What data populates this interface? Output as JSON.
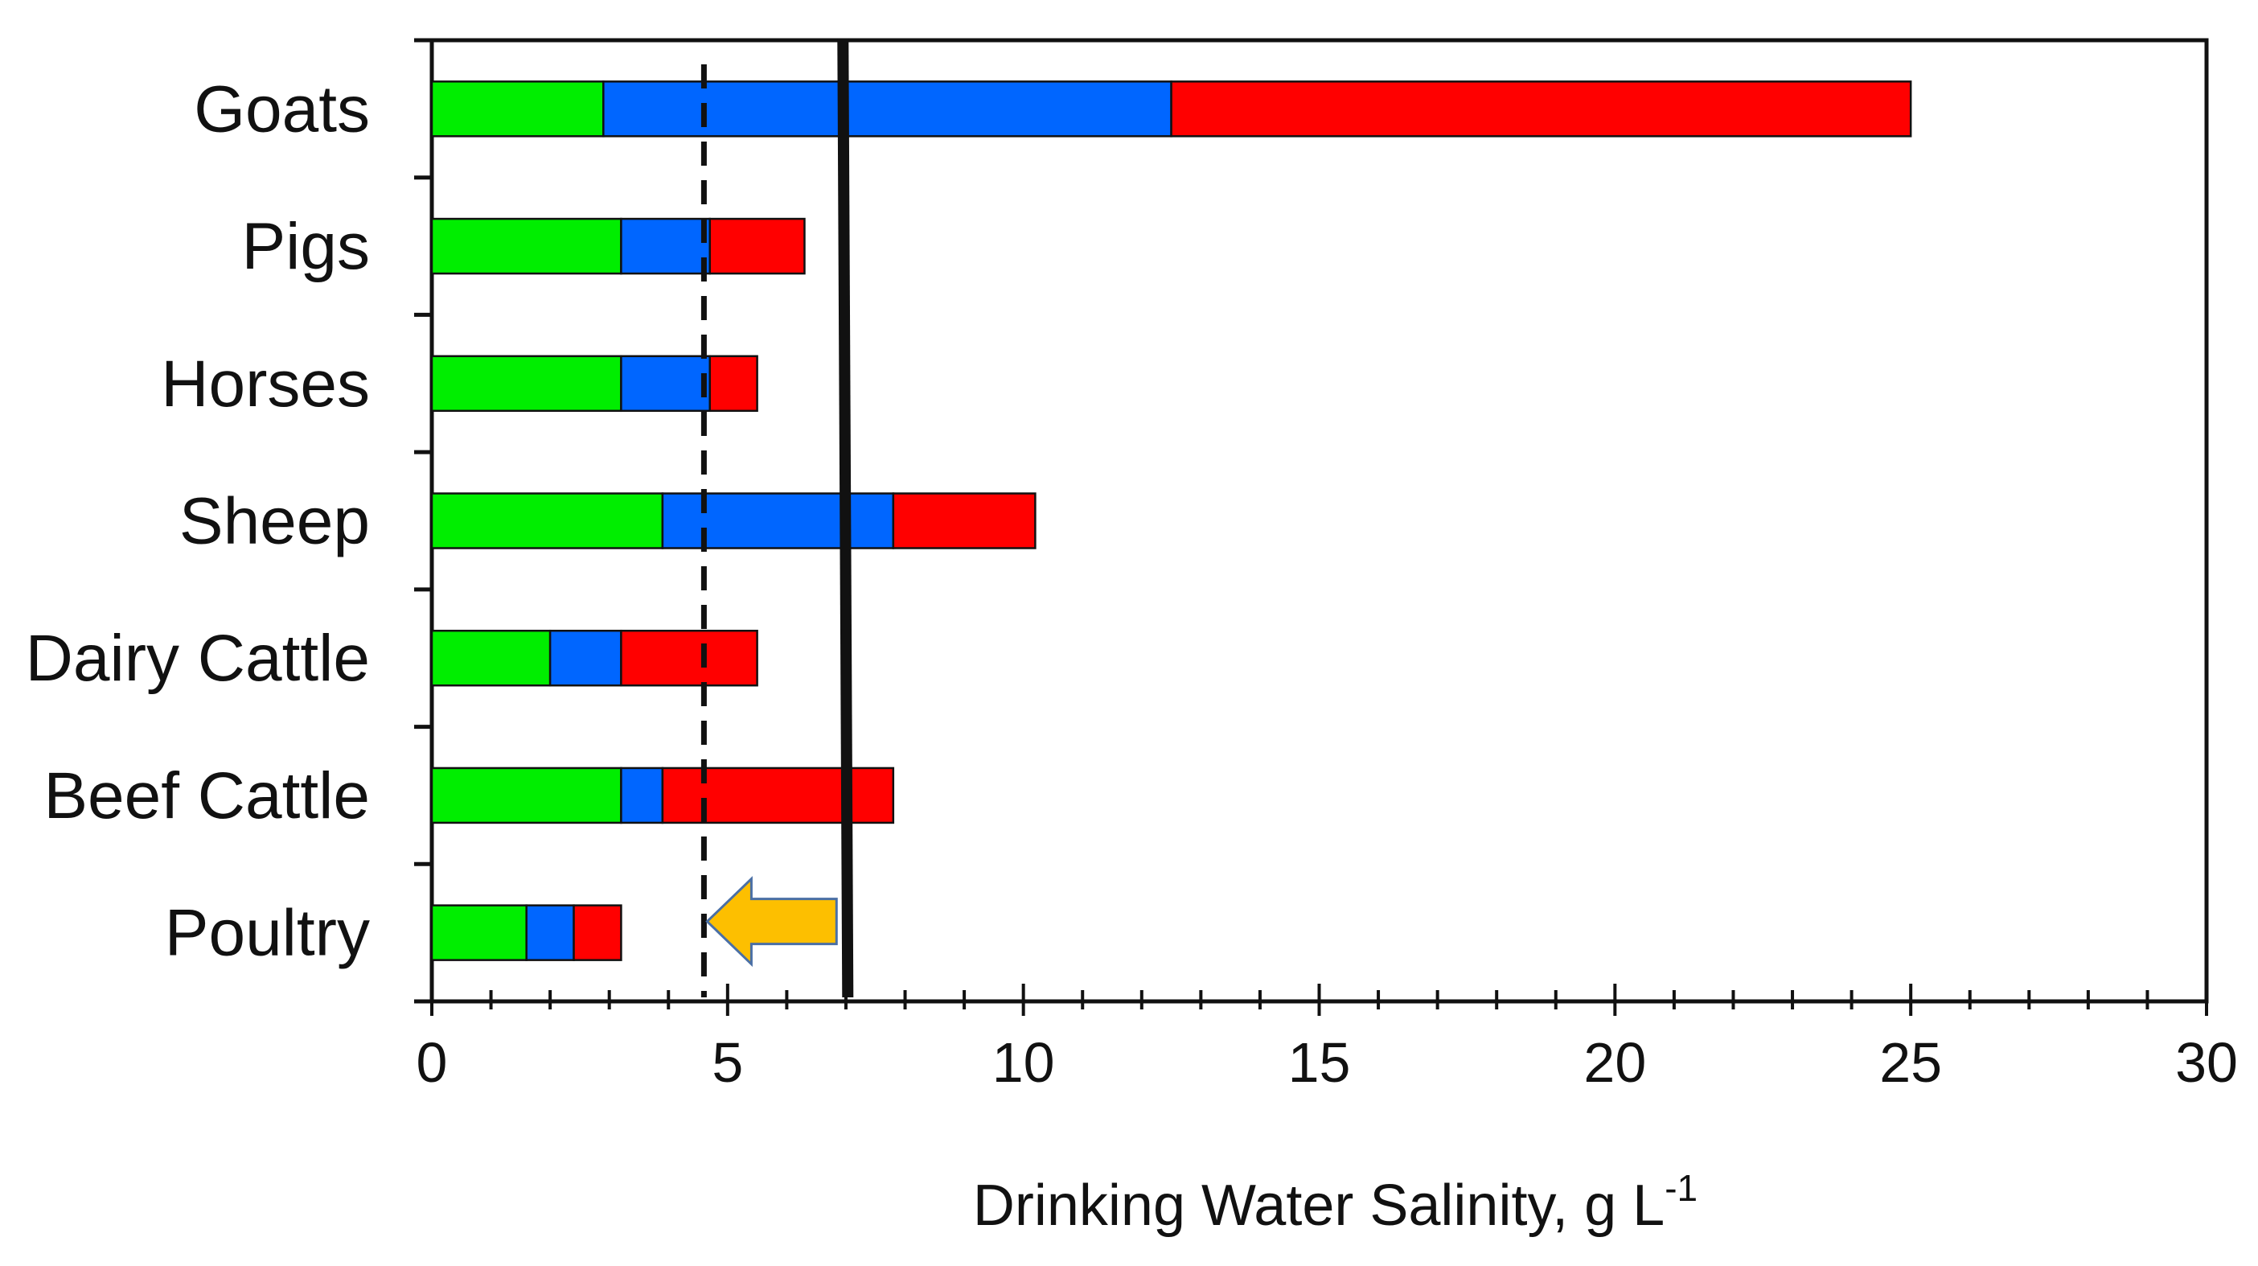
{
  "chart_data": {
    "type": "bar",
    "orientation": "horizontal",
    "stacked": true,
    "title": "",
    "categories": [
      "Goats",
      "Pigs",
      "Horses",
      "Sheep",
      "Dairy Cattle",
      "Beef Cattle",
      "Poultry"
    ],
    "series": [
      {
        "name": "green segment",
        "color": "#00ee00",
        "values": [
          2.9,
          3.2,
          3.2,
          3.9,
          2.0,
          3.2,
          1.6
        ]
      },
      {
        "name": "blue segment",
        "color": "#0066ff",
        "values": [
          9.6,
          1.5,
          1.5,
          3.9,
          1.2,
          0.7,
          0.8
        ]
      },
      {
        "name": "red segment",
        "color": "#ff0000",
        "values": [
          12.5,
          1.6,
          0.8,
          2.4,
          2.3,
          3.9,
          0.8
        ]
      }
    ],
    "xlabel_main": "Drinking Water Salinity, g L",
    "xlabel_superscript": "-1",
    "ylabel": "",
    "xlim": [
      0,
      30
    ],
    "xticks": [
      "0",
      "5",
      "10",
      "15",
      "20",
      "25",
      "30"
    ],
    "x_minor_step": 1,
    "reference_lines": [
      {
        "name": "dashed-threshold",
        "x": 4.6,
        "style": "dashed",
        "color": "#111111"
      },
      {
        "name": "solid-threshold",
        "x": 6.95,
        "style": "solid",
        "color": "#111111"
      }
    ],
    "arrow": {
      "from_x": 6.95,
      "to_x": 4.6,
      "category": "Poultry",
      "color": "#fdbf00",
      "stroke": "#4a6fa5"
    },
    "grid": false,
    "legend": "none"
  }
}
